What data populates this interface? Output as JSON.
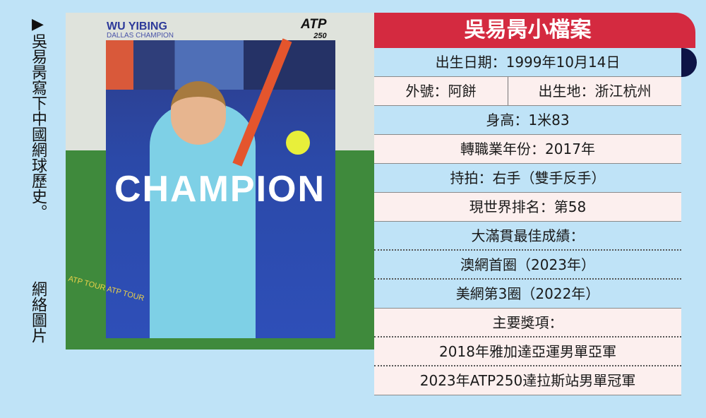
{
  "caption": {
    "text": "▶吳易昺寫下中國網球歷史。",
    "credit": "網絡圖片"
  },
  "photo": {
    "name": "WU YIBING",
    "subtitle": "DALLAS CHAMPION",
    "logo": "ATP",
    "logo_sub": "250",
    "headline": "CHAMPION",
    "ring_text": "ATP TOUR ATP TOUR"
  },
  "profile": {
    "title": "吳易昺小檔案",
    "birthdate": "出生日期：1999年10月14日",
    "nickname": "外號：阿餅",
    "birthplace": "出生地：浙江杭州",
    "height": "身高：1米83",
    "pro_year": "轉職業年份：2017年",
    "plays": "持拍：右手（雙手反手）",
    "ranking": "現世界排名：第58",
    "slam_heading": "大滿貫最佳成績：",
    "slams": [
      "澳網首圈（2023年）",
      "美網第3圈（2022年）"
    ],
    "awards_heading": "主要獎項：",
    "awards": [
      "2018年雅加達亞運男單亞軍",
      "2023年ATP250達拉斯站男單冠軍"
    ]
  },
  "colors": {
    "header": "#d42a40",
    "navy": "#0d1446",
    "blue_row": "#bfe3f7",
    "pink_row": "#fcefee"
  }
}
